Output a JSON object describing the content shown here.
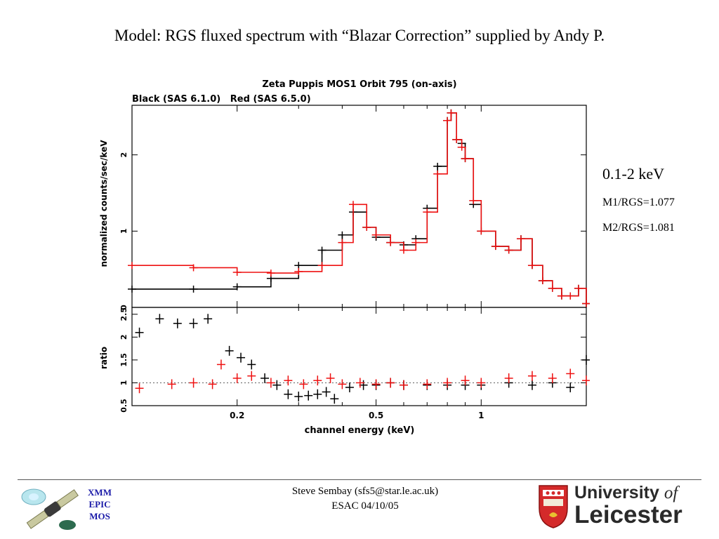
{
  "slide": {
    "title": "Model: RGS fluxed spectrum with “Blazar Correction” supplied by Andy P."
  },
  "chart_data": {
    "type": "line",
    "title": "Zeta Puppis MOS1 Orbit 795 (on-axis)",
    "subtitle": "Black (SAS 6.1.0)   Red (SAS 6.5.0)",
    "x_scale": "log",
    "xlim": [
      0.1,
      2.0
    ],
    "xlabel": "channel energy (keV)",
    "x_ticks": [
      "0.2",
      "0.5",
      "1"
    ],
    "x_tick_values": [
      0.2,
      0.5,
      1
    ],
    "colors": {
      "black": "#000000",
      "red": "#ee1111"
    },
    "top_panel": {
      "ylabel": "normalized counts/sec/keV",
      "ylim": [
        0,
        2.65
      ],
      "y_ticks": [
        "0",
        "1",
        "2"
      ],
      "y_tick_values": [
        0,
        1,
        2
      ],
      "series": [
        {
          "color": "#000000",
          "x": [
            0.1,
            0.15,
            0.2,
            0.25,
            0.3,
            0.35,
            0.4,
            0.43,
            0.47,
            0.5,
            0.55,
            0.6,
            0.65,
            0.7,
            0.75,
            0.8,
            0.82,
            0.85,
            0.88,
            0.9,
            0.95,
            1.0,
            1.1,
            1.2,
            1.3,
            1.4,
            1.5,
            1.6,
            1.7,
            1.8,
            1.9,
            2.0
          ],
          "y": [
            0.24,
            0.24,
            0.27,
            0.38,
            0.55,
            0.75,
            0.95,
            1.25,
            1.05,
            0.92,
            0.85,
            0.82,
            0.9,
            1.3,
            1.85,
            2.45,
            2.55,
            2.2,
            2.15,
            1.95,
            1.35,
            1.0,
            0.8,
            0.75,
            0.9,
            0.55,
            0.35,
            0.25,
            0.15,
            0.15,
            0.25,
            0.05
          ]
        },
        {
          "color": "#ee1111",
          "x": [
            0.1,
            0.15,
            0.2,
            0.25,
            0.3,
            0.35,
            0.4,
            0.43,
            0.47,
            0.5,
            0.55,
            0.6,
            0.65,
            0.7,
            0.75,
            0.8,
            0.82,
            0.85,
            0.88,
            0.9,
            0.95,
            1.0,
            1.1,
            1.2,
            1.3,
            1.4,
            1.5,
            1.6,
            1.7,
            1.8,
            1.9,
            2.0
          ],
          "y": [
            0.55,
            0.52,
            0.46,
            0.45,
            0.47,
            0.55,
            0.85,
            1.35,
            1.05,
            0.95,
            0.85,
            0.75,
            0.85,
            1.25,
            1.75,
            2.45,
            2.55,
            2.2,
            2.1,
            1.95,
            1.4,
            1.0,
            0.8,
            0.75,
            0.9,
            0.55,
            0.35,
            0.25,
            0.15,
            0.15,
            0.25,
            0.05
          ]
        }
      ]
    },
    "bottom_panel": {
      "ylabel": "ratio",
      "ylim": [
        0.5,
        2.65
      ],
      "y_ticks": [
        "0.5",
        "1",
        "1.5",
        "2",
        "2.5"
      ],
      "y_tick_values": [
        0.5,
        1,
        1.5,
        2,
        2.5
      ],
      "reference_y": 1,
      "series": [
        {
          "color": "#000000",
          "x": [
            0.105,
            0.12,
            0.135,
            0.15,
            0.165,
            0.19,
            0.205,
            0.22,
            0.24,
            0.26,
            0.28,
            0.3,
            0.32,
            0.34,
            0.36,
            0.38,
            0.42,
            0.46,
            0.5,
            0.55,
            0.6,
            0.7,
            0.8,
            0.9,
            1.0,
            1.2,
            1.4,
            1.6,
            1.8,
            2.0
          ],
          "y": [
            2.1,
            2.4,
            2.3,
            2.3,
            2.4,
            1.7,
            1.55,
            1.4,
            1.1,
            0.95,
            0.75,
            0.7,
            0.72,
            0.75,
            0.8,
            0.65,
            0.9,
            0.95,
            0.95,
            1.0,
            0.95,
            0.95,
            0.95,
            0.95,
            0.95,
            1.0,
            0.95,
            1.0,
            0.9,
            1.5
          ]
        },
        {
          "color": "#ee1111",
          "x": [
            0.105,
            0.13,
            0.15,
            0.17,
            0.18,
            0.2,
            0.22,
            0.25,
            0.28,
            0.31,
            0.34,
            0.37,
            0.4,
            0.45,
            0.5,
            0.55,
            0.6,
            0.7,
            0.8,
            0.9,
            1.0,
            1.2,
            1.4,
            1.6,
            1.8,
            2.0
          ],
          "y": [
            0.88,
            0.97,
            1.0,
            0.97,
            1.4,
            1.1,
            1.15,
            1.0,
            1.05,
            0.97,
            1.05,
            1.1,
            0.97,
            1.0,
            0.97,
            1.0,
            0.95,
            0.97,
            1.0,
            1.05,
            1.0,
            1.1,
            1.15,
            1.1,
            1.2,
            1.05
          ]
        }
      ]
    }
  },
  "annotations": {
    "energy_range": "0.1-2 keV",
    "m1_ratio": "M1/RGS=1.077",
    "m2_ratio": "M2/RGS=1.081"
  },
  "footer": {
    "mission_lines": [
      "XMM",
      "EPIC",
      "MOS"
    ],
    "author": "Steve Sembay (sfs5@star.le.ac.uk)",
    "venue_date": "ESAC 04/10/05",
    "university_line1": "University",
    "university_of": "of",
    "university_line2": "Leicester"
  }
}
